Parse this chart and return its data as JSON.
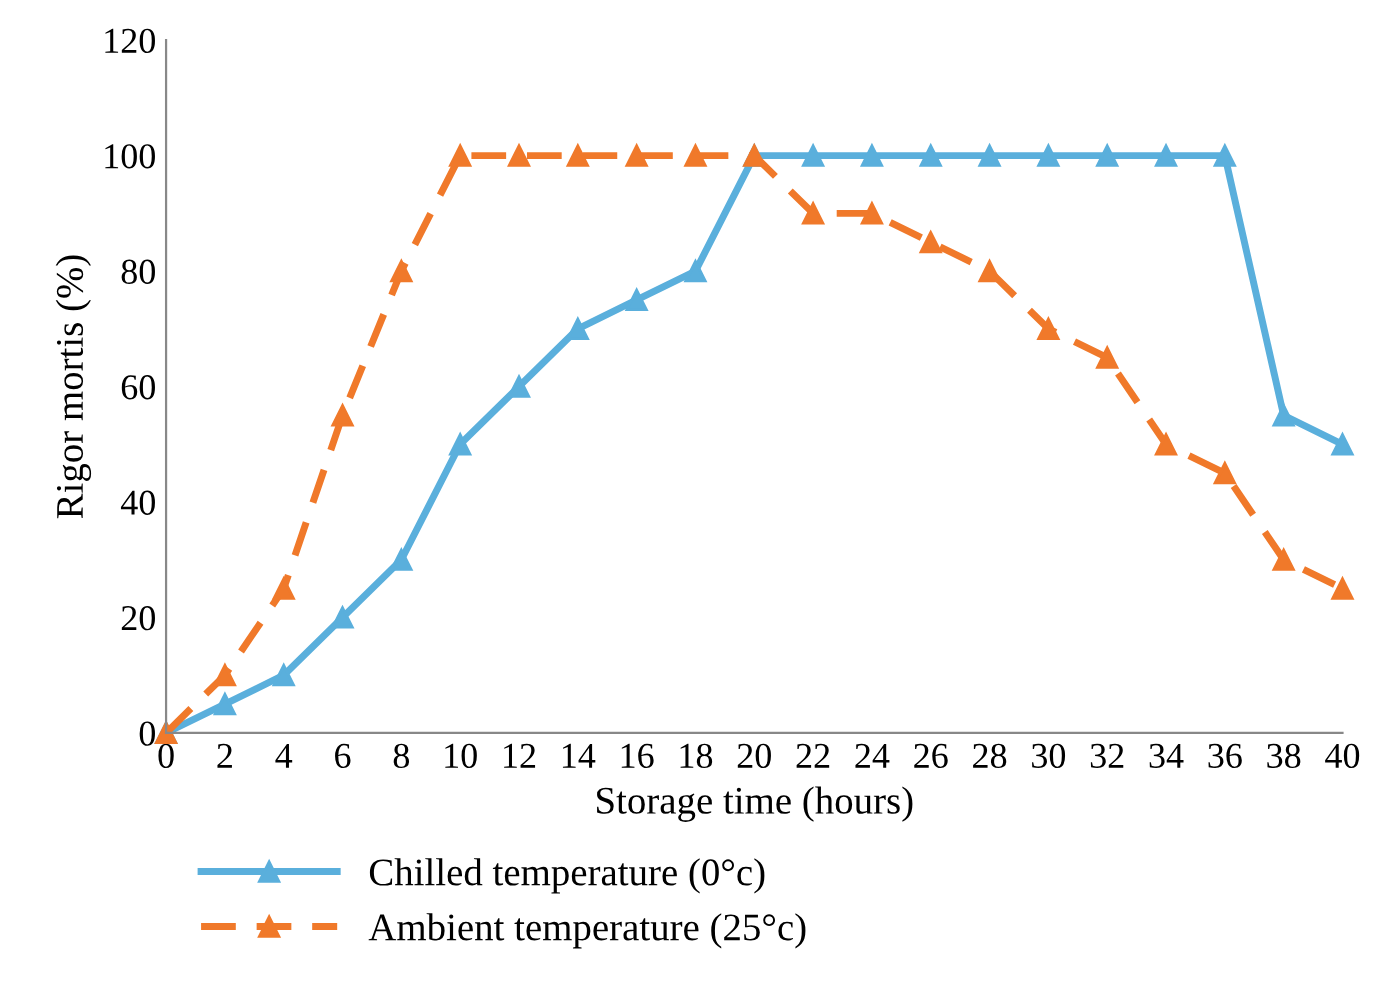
{
  "chart_data": {
    "type": "line",
    "xlabel": "Storage time (hours)",
    "ylabel": "Rigor mortis (%)",
    "x": [
      0,
      2,
      4,
      6,
      8,
      10,
      12,
      14,
      16,
      18,
      20,
      22,
      24,
      26,
      28,
      30,
      32,
      34,
      36,
      38,
      40
    ],
    "xlim": [
      0,
      40
    ],
    "xticks": [
      0,
      2,
      4,
      6,
      8,
      10,
      12,
      14,
      16,
      18,
      20,
      22,
      24,
      26,
      28,
      30,
      32,
      34,
      36,
      38,
      40
    ],
    "ylim": [
      0,
      120
    ],
    "yticks": [
      0,
      20,
      40,
      60,
      80,
      100,
      120
    ],
    "grid": false,
    "legend": "bottom",
    "marker": "triangle",
    "series": [
      {
        "name": "Chilled temperature (0°c)",
        "color": "#5aafdc",
        "line_style": "solid",
        "values": [
          0,
          5,
          10,
          20,
          30,
          50,
          60,
          70,
          75,
          80,
          100,
          100,
          100,
          100,
          100,
          100,
          100,
          100,
          100,
          55,
          50
        ]
      },
      {
        "name": "Ambient temperature (25°c)",
        "color": "#f0792a",
        "line_style": "dashed",
        "values": [
          0,
          10,
          25,
          55,
          80,
          100,
          100,
          100,
          100,
          100,
          100,
          90,
          90,
          85,
          80,
          70,
          65,
          50,
          45,
          30,
          25
        ]
      }
    ]
  }
}
